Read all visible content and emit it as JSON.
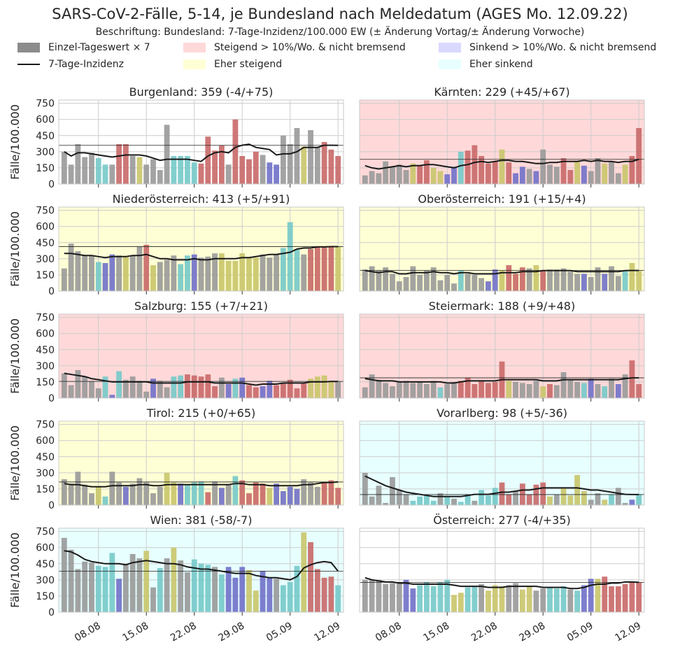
{
  "header": {
    "title": "SARS-CoV-2-Fälle, 5-14, je Bundesland nach Meldedatum (AGES Mo. 12.09.22)",
    "subtitle": "Beschriftung: Bundesland: 7-Tage-Inzidenz/100.000 EW (± Änderung Vortag/± Änderung Vorwoche)"
  },
  "legend": {
    "daily": "Einzel-Tageswert × 7",
    "incidence": "7-Tage-Inzidenz",
    "rising_strong": "Steigend > 10%/Wo. & nicht bremsend",
    "rising": "Eher steigend",
    "falling_strong": "Sinkend > 10%/Wo. & nicht bremsend",
    "falling": "Eher sinkend"
  },
  "colors": {
    "bg_rising_strong": "#ffd9d9",
    "bg_rising": "#ffffd6",
    "bg_falling_strong": "#d9d9ff",
    "bg_falling": "#e8ffff",
    "bg_none": "#ffffff",
    "bar_gray": "#999999",
    "bar_red": "#c96868",
    "bar_yellow": "#c9c56a",
    "bar_blue": "#7070c9",
    "bar_cyan": "#76c9c9",
    "line": "#1a1a1a",
    "grid": "#cccccc"
  },
  "chart_data": {
    "type": "bar",
    "ylabel": "Fälle/100.000",
    "ylim": [
      0,
      780
    ],
    "yticks": [
      0,
      150,
      300,
      450,
      600,
      750
    ],
    "x_tick_labels": [
      "08.08",
      "15.08",
      "22.08",
      "29.08",
      "05.09",
      "12.09"
    ],
    "x_tick_day_index": [
      5,
      12,
      19,
      26,
      33,
      40
    ],
    "days": 41,
    "color_key": {
      "g": "gray",
      "r": "red",
      "y": "yellow",
      "b": "blue",
      "c": "cyan"
    },
    "panels": [
      {
        "name": "Burgenland",
        "label": "Burgenland: 359 (-4/+75)",
        "background": "none",
        "ref": 359,
        "values": [
          300,
          180,
          370,
          250,
          290,
          240,
          180,
          180,
          370,
          370,
          260,
          250,
          180,
          230,
          130,
          550,
          260,
          260,
          260,
          200,
          190,
          440,
          310,
          360,
          180,
          600,
          260,
          230,
          300,
          270,
          200,
          180,
          450,
          370,
          520,
          350,
          500,
          340,
          390,
          320,
          260
        ],
        "incidence": [
          300,
          260,
          290,
          290,
          280,
          270,
          260,
          250,
          260,
          270,
          270,
          270,
          260,
          240,
          220,
          230,
          230,
          230,
          230,
          220,
          210,
          260,
          290,
          300,
          290,
          340,
          360,
          370,
          340,
          330,
          320,
          270,
          280,
          280,
          300,
          340,
          340,
          340,
          360,
          360,
          359
        ],
        "colors": "gggggccgrrgyggggccccrrrrgrrrrgbbgggyggrrr"
      },
      {
        "name": "Kärnten",
        "label": "Kärnten: 229 (+45/+67)",
        "background": "rising_strong",
        "ref": 229,
        "values": [
          80,
          120,
          100,
          210,
          160,
          180,
          130,
          190,
          170,
          220,
          150,
          120,
          90,
          160,
          300,
          310,
          360,
          260,
          190,
          210,
          320,
          200,
          100,
          160,
          140,
          120,
          320,
          180,
          160,
          240,
          130,
          210,
          170,
          120,
          240,
          190,
          210,
          100,
          180,
          260,
          520
        ],
        "incidence": [
          170,
          150,
          140,
          150,
          160,
          170,
          160,
          170,
          170,
          180,
          180,
          170,
          160,
          150,
          170,
          180,
          200,
          210,
          200,
          210,
          220,
          220,
          210,
          210,
          200,
          190,
          190,
          200,
          200,
          210,
          210,
          210,
          220,
          210,
          220,
          210,
          210,
          200,
          210,
          210,
          229
        ],
        "colors": "gggggggyrryybbcrrrrryrbbgbgggrrybggyggyrr"
      },
      {
        "name": "Niederösterreich",
        "label": "Niederösterreich: 413 (+5/+91)",
        "background": "rising",
        "ref": 413,
        "values": [
          210,
          440,
          370,
          330,
          330,
          270,
          260,
          340,
          330,
          320,
          330,
          410,
          430,
          240,
          270,
          290,
          330,
          250,
          330,
          340,
          310,
          320,
          350,
          350,
          280,
          280,
          350,
          310,
          310,
          340,
          310,
          340,
          400,
          640,
          390,
          340,
          390,
          410,
          410,
          410,
          413
        ],
        "incidence": [
          350,
          350,
          340,
          330,
          330,
          320,
          310,
          320,
          320,
          320,
          330,
          330,
          340,
          320,
          300,
          300,
          290,
          290,
          290,
          300,
          290,
          290,
          300,
          300,
          300,
          300,
          310,
          310,
          320,
          330,
          340,
          340,
          350,
          360,
          390,
          400,
          400,
          410,
          410,
          413,
          413
        ],
        "colors": "gggggcbbgyggrygggccbgggyyyyyygggcccgrrrry"
      },
      {
        "name": "Oberösterreich",
        "label": "Oberösterreich: 191 (+15/+4)",
        "background": "rising",
        "ref": 191,
        "values": [
          200,
          230,
          190,
          220,
          160,
          90,
          130,
          230,
          150,
          190,
          220,
          100,
          150,
          70,
          190,
          160,
          150,
          120,
          90,
          200,
          190,
          240,
          160,
          220,
          210,
          240,
          190,
          200,
          200,
          210,
          180,
          160,
          160,
          130,
          220,
          160,
          230,
          140,
          190,
          260,
          191
        ],
        "incidence": [
          190,
          180,
          170,
          180,
          180,
          160,
          160,
          170,
          170,
          170,
          180,
          170,
          170,
          160,
          170,
          170,
          160,
          160,
          160,
          160,
          170,
          170,
          170,
          180,
          180,
          180,
          190,
          190,
          190,
          190,
          190,
          180,
          180,
          180,
          180,
          180,
          180,
          180,
          190,
          191,
          191
        ],
        "colors": "ggggggggggggggcgggbbyrrrgyrgggggbggbggcyy"
      },
      {
        "name": "Salzburg",
        "label": "Salzburg: 155 (+7/+21)",
        "background": "rising_strong",
        "ref": 155,
        "values": [
          230,
          120,
          260,
          200,
          160,
          90,
          200,
          30,
          250,
          170,
          200,
          160,
          60,
          180,
          160,
          100,
          200,
          210,
          220,
          210,
          200,
          220,
          110,
          190,
          130,
          180,
          190,
          120,
          100,
          110,
          160,
          120,
          140,
          170,
          90,
          140,
          180,
          200,
          210,
          160,
          155
        ],
        "incidence": [
          230,
          220,
          210,
          200,
          180,
          170,
          160,
          150,
          150,
          150,
          150,
          150,
          150,
          140,
          140,
          140,
          140,
          140,
          150,
          150,
          150,
          150,
          140,
          140,
          140,
          140,
          140,
          130,
          120,
          130,
          130,
          130,
          140,
          140,
          140,
          140,
          150,
          150,
          150,
          155,
          155
        ],
        "colors": "ggggggcbcggggbggccrrrrrgbcbrrbbrrrrryyyyg"
      },
      {
        "name": "Steiermark",
        "label": "Steiermark: 188 (+9/+48)",
        "background": "rising_strong",
        "ref": 188,
        "values": [
          100,
          220,
          170,
          140,
          110,
          150,
          160,
          140,
          150,
          130,
          160,
          100,
          130,
          150,
          160,
          190,
          130,
          160,
          140,
          150,
          340,
          160,
          150,
          140,
          130,
          160,
          110,
          130,
          120,
          240,
          170,
          150,
          140,
          180,
          130,
          110,
          180,
          130,
          220,
          350,
          130
        ],
        "incidence": [
          180,
          170,
          160,
          160,
          160,
          150,
          150,
          150,
          150,
          150,
          150,
          150,
          140,
          140,
          150,
          160,
          160,
          160,
          160,
          160,
          170,
          170,
          170,
          170,
          170,
          170,
          160,
          160,
          160,
          170,
          170,
          170,
          170,
          170,
          170,
          170,
          170,
          170,
          180,
          188,
          188
        ],
        "colors": "gggggggggggcggrrrrrrryggggyrggggcbgcgbgrr"
      },
      {
        "name": "Tirol",
        "label": "Tirol: 215 (+0/+65)",
        "background": "rising",
        "ref": 215,
        "values": [
          240,
          200,
          310,
          190,
          110,
          170,
          80,
          310,
          210,
          170,
          200,
          250,
          210,
          110,
          170,
          300,
          210,
          200,
          190,
          210,
          220,
          120,
          220,
          160,
          190,
          270,
          230,
          110,
          210,
          200,
          160,
          200,
          130,
          170,
          150,
          240,
          210,
          170,
          210,
          230,
          160
        ],
        "incidence": [
          200,
          190,
          190,
          180,
          170,
          170,
          170,
          180,
          180,
          180,
          180,
          190,
          190,
          180,
          180,
          190,
          190,
          190,
          190,
          190,
          190,
          190,
          190,
          190,
          190,
          200,
          200,
          190,
          190,
          190,
          180,
          180,
          180,
          180,
          180,
          190,
          190,
          200,
          210,
          210,
          215
        ],
        "colors": "gggggycggbgggggyybcccrgbgcrrrrybbbbgggrrr"
      },
      {
        "name": "Vorarlberg",
        "label": "Vorarlberg: 98 (+5/-36)",
        "background": "falling",
        "ref": 98,
        "values": [
          300,
          80,
          180,
          20,
          260,
          140,
          100,
          40,
          80,
          90,
          40,
          110,
          80,
          60,
          30,
          100,
          40,
          140,
          90,
          160,
          210,
          100,
          130,
          200,
          100,
          190,
          210,
          80,
          100,
          160,
          90,
          280,
          130,
          50,
          110,
          50,
          100,
          160,
          20,
          50,
          98
        ],
        "incidence": [
          270,
          240,
          210,
          180,
          160,
          140,
          120,
          110,
          100,
          90,
          80,
          80,
          80,
          80,
          80,
          90,
          100,
          100,
          100,
          110,
          120,
          120,
          130,
          140,
          140,
          150,
          160,
          160,
          160,
          160,
          160,
          160,
          150,
          140,
          140,
          130,
          120,
          110,
          100,
          98,
          98
        ],
        "colors": "gggggggccccgcgccgcccrrgrrrrygyyyyggycggbc"
      },
      {
        "name": "Wien",
        "label": "Wien: 381 (-58/-7)",
        "background": "falling",
        "ref": 381,
        "values": [
          690,
          580,
          400,
          470,
          460,
          430,
          420,
          550,
          310,
          440,
          540,
          500,
          570,
          230,
          410,
          500,
          600,
          480,
          370,
          490,
          450,
          440,
          420,
          350,
          420,
          320,
          420,
          390,
          200,
          380,
          320,
          310,
          250,
          280,
          430,
          740,
          650,
          400,
          320,
          330,
          250
        ],
        "incidence": [
          570,
          560,
          530,
          490,
          470,
          460,
          450,
          450,
          450,
          440,
          460,
          470,
          480,
          470,
          460,
          450,
          450,
          440,
          420,
          410,
          400,
          400,
          390,
          380,
          370,
          360,
          360,
          360,
          340,
          330,
          320,
          320,
          310,
          300,
          330,
          410,
          440,
          460,
          470,
          460,
          381
        ],
        "colors": "gggggcccbgggygcgyggcccgcbbbyybbgcccyrrrrc"
      },
      {
        "name": "Österreich",
        "label": "Österreich: 277 (-4/+35)",
        "background": "none",
        "ref": 277,
        "values": [
          300,
          300,
          300,
          260,
          270,
          280,
          300,
          220,
          250,
          280,
          240,
          280,
          300,
          160,
          180,
          230,
          240,
          260,
          200,
          250,
          240,
          250,
          270,
          210,
          240,
          200,
          220,
          230,
          220,
          240,
          210,
          200,
          250,
          310,
          310,
          330,
          240,
          240,
          260,
          280,
          277
        ],
        "incidence": [
          320,
          300,
          290,
          280,
          280,
          270,
          270,
          260,
          260,
          260,
          260,
          260,
          260,
          250,
          240,
          240,
          240,
          240,
          230,
          230,
          230,
          240,
          240,
          240,
          240,
          240,
          230,
          230,
          230,
          230,
          220,
          220,
          230,
          250,
          260,
          260,
          270,
          270,
          280,
          280,
          277
        ],
        "colors": "ggggggbbcccccyyccgyyyggyyggcccgcbbyrrrrrr"
      }
    ]
  }
}
